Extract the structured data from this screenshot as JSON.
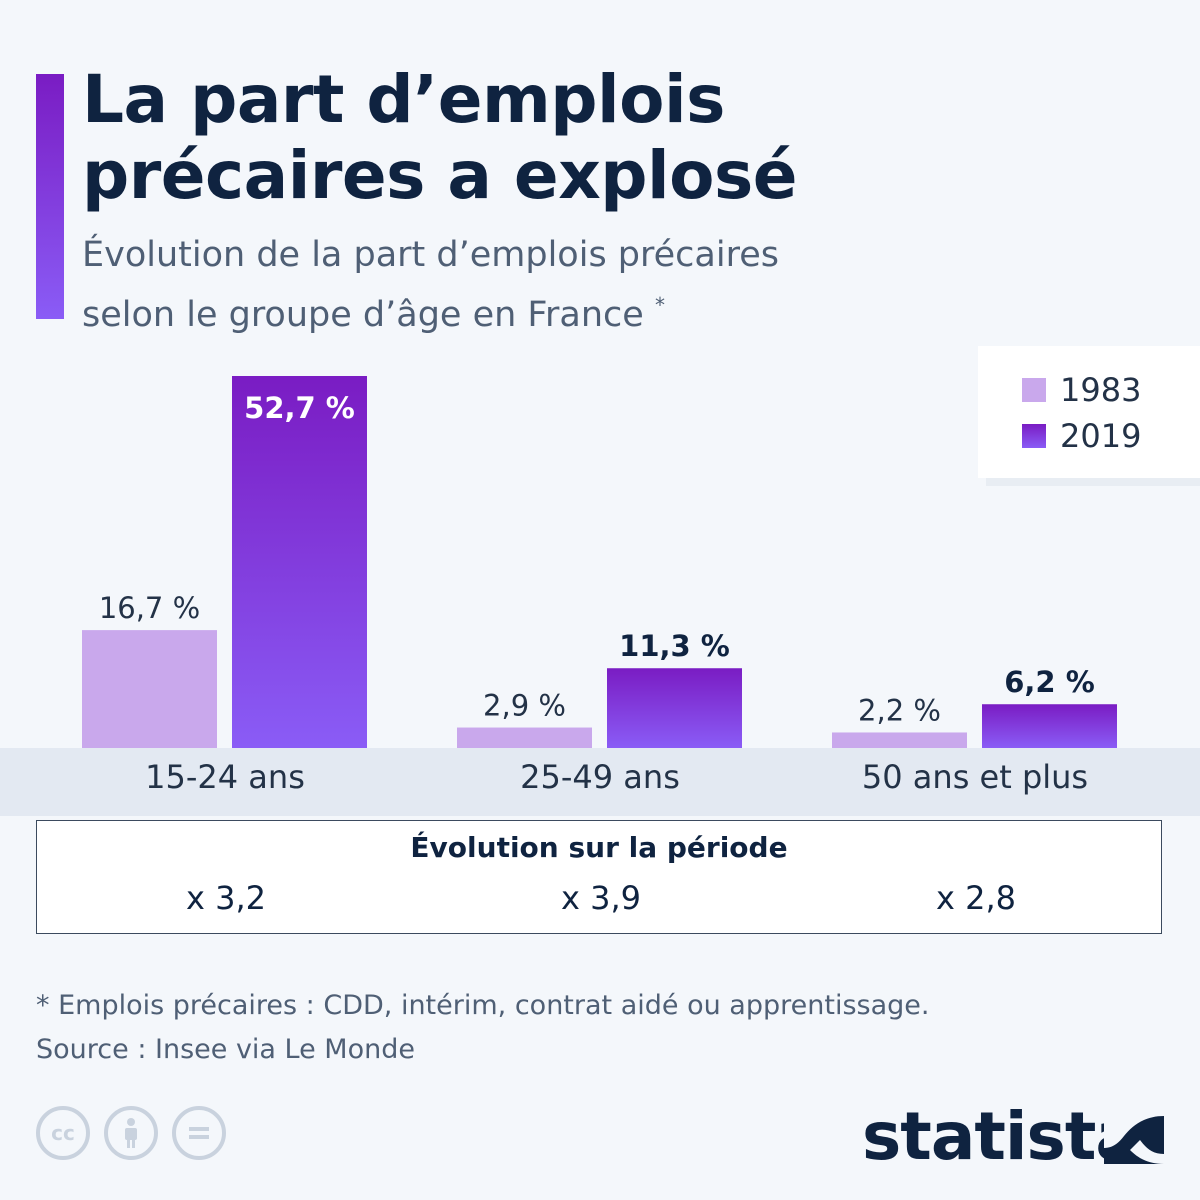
{
  "header": {
    "title_line1": "La part d’emplois",
    "title_line2": "précaires a explosé",
    "subtitle_line1": "Évolution de la part d’emplois précaires",
    "subtitle_line2": "selon le groupe d’âge en France",
    "subtitle_marker": "*"
  },
  "colors": {
    "series_1983": "#c9a8ec",
    "series_2019_top": "#7a1cc3",
    "series_2019_bottom": "#8a5cf6",
    "accent": "#7a1cc3",
    "text_dark": "#0f2340"
  },
  "chart_data": {
    "type": "bar",
    "categories": [
      "15-24 ans",
      "25-49 ans",
      "50 ans et plus"
    ],
    "series": [
      {
        "name": "1983",
        "values": [
          16.7,
          2.9,
          2.2
        ],
        "labels": [
          "16,7 %",
          "2,9 %",
          "2,2 %"
        ]
      },
      {
        "name": "2019",
        "values": [
          52.7,
          11.3,
          6.2
        ],
        "labels": [
          "52,7 %",
          "11,3 %",
          "6,2 %"
        ]
      }
    ],
    "ylim": [
      0,
      52.7
    ],
    "grid": false,
    "legend_position": "top-right"
  },
  "legend": {
    "items": [
      {
        "label": "1983"
      },
      {
        "label": "2019"
      }
    ]
  },
  "evolution": {
    "title": "Évolution sur la période",
    "values": [
      "x 3,2",
      "x 3,9",
      "x 2,8"
    ]
  },
  "footer": {
    "footnote": "* Emplois précaires : CDD, intérim, contrat aidé ou apprentissage.",
    "source": "Source : Insee via Le Monde",
    "brand": "statista",
    "license_icons": [
      "cc-icon",
      "attribution-icon",
      "no-derivatives-icon"
    ]
  }
}
